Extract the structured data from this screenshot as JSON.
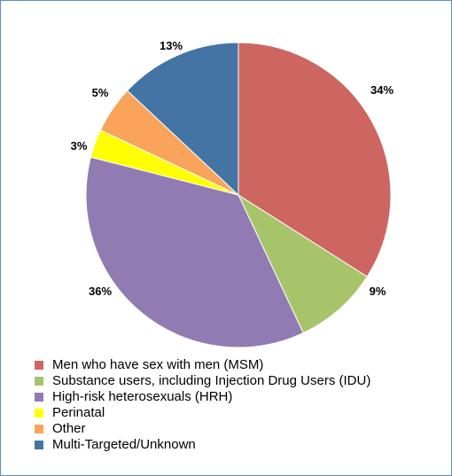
{
  "chart_data": {
    "type": "pie",
    "start_angle": "12 o'clock",
    "direction": "clockwise",
    "slices": [
      {
        "label": "Men who have sex with men (MSM)",
        "value": 34,
        "value_label": "34%",
        "color": "#cd6660"
      },
      {
        "label": "Substance users, including Injection Drug Users (IDU)",
        "value": 9,
        "value_label": "9%",
        "color": "#a8c46b"
      },
      {
        "label": "High-risk heterosexuals (HRH)",
        "value": 36,
        "value_label": "36%",
        "color": "#907bb2"
      },
      {
        "label": "Perinatal",
        "value": 3,
        "value_label": "3%",
        "color": "#ffff00"
      },
      {
        "label": "Other",
        "value": 5,
        "value_label": "5%",
        "color": "#f9a35b"
      },
      {
        "label": "Multi-Targeted/Unknown",
        "value": 13,
        "value_label": "13%",
        "color": "#4474a4"
      }
    ],
    "legend_position": "bottom-left"
  }
}
